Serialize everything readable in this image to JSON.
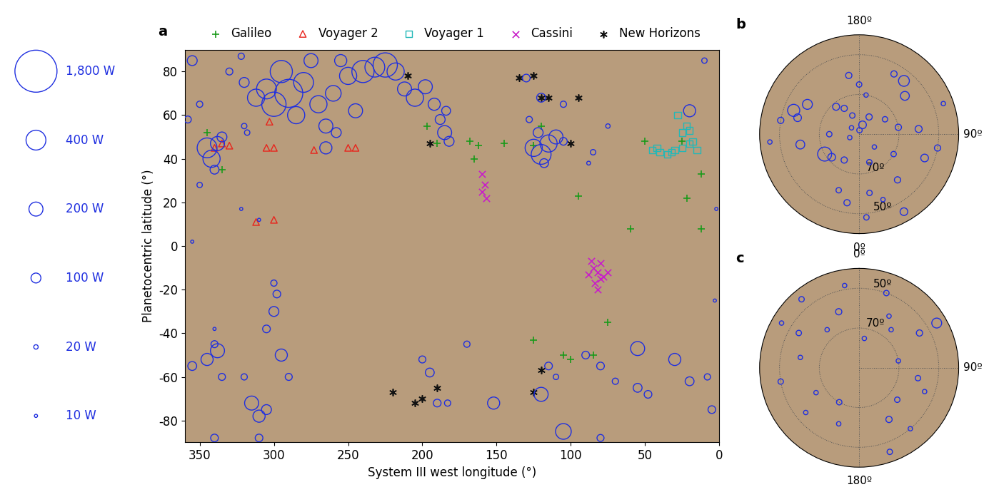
{
  "chart_data": [
    {
      "type": "scatter",
      "title": "a",
      "xlabel": "System III west longitude (°)",
      "ylabel": "Planetocentric latitude (°)",
      "xlim": [
        360,
        0
      ],
      "ylim": [
        -90,
        90
      ],
      "xticks": [
        350,
        300,
        250,
        200,
        150,
        100,
        50,
        0
      ],
      "yticks": [
        -80,
        -60,
        -40,
        -20,
        0,
        20,
        40,
        60,
        80
      ],
      "legend": "upper center",
      "size_legend": {
        "values": [
          1800,
          400,
          200,
          100,
          20,
          10
        ],
        "value_labels": [
          "1,800 W",
          "400 W",
          "200 W",
          "100 W",
          "20 W",
          "10 W"
        ]
      },
      "series": [
        {
          "name": "Galileo",
          "color": "#1a9a1a",
          "marker": "plus",
          "x": [
            345,
            335,
            197,
            190,
            168,
            162,
            165,
            145,
            125,
            120,
            95,
            60,
            50,
            25,
            22,
            12,
            12,
            100,
            105,
            75,
            85,
            125
          ],
          "y": [
            52,
            35,
            55,
            47,
            48,
            46,
            40,
            47,
            46,
            55,
            23,
            8,
            48,
            48,
            22,
            33,
            8,
            -52,
            -50,
            -35,
            -50,
            -43
          ]
        },
        {
          "name": "Voyager 2",
          "color": "#e8241c",
          "marker": "triangle",
          "x": [
            340,
            335,
            330,
            303,
            305,
            300,
            273,
            250,
            245,
            312,
            300
          ],
          "y": [
            45,
            47,
            46,
            57,
            45,
            45,
            44,
            45,
            45,
            11,
            12
          ]
        },
        {
          "name": "Voyager 1",
          "color": "#22b8b8",
          "marker": "square",
          "x": [
            45,
            40,
            35,
            30,
            25,
            20,
            15,
            20,
            22,
            25,
            28,
            18,
            42,
            32
          ],
          "y": [
            44,
            43,
            42,
            44,
            45,
            47,
            44,
            53,
            55,
            52,
            60,
            48,
            45,
            43
          ]
        },
        {
          "name": "Cassini",
          "color": "#c81ec8",
          "marker": "x",
          "x": [
            160,
            158,
            160,
            157,
            85,
            82,
            80,
            78,
            88,
            84,
            80,
            86,
            75,
            82
          ],
          "y": [
            33,
            28,
            25,
            22,
            -10,
            -12,
            -8,
            -14,
            -13,
            -17,
            -15,
            -7,
            -12,
            -20
          ]
        },
        {
          "name": "New Horizons",
          "color": "#111111",
          "marker": "asterisk",
          "x": [
            210,
            195,
            135,
            125,
            120,
            115,
            95,
            100,
            120,
            125,
            220,
            205,
            200,
            190
          ],
          "y": [
            78,
            47,
            77,
            78,
            68,
            68,
            68,
            47,
            -57,
            -67,
            -67,
            -72,
            -70,
            -65
          ]
        },
        {
          "color": "#1f2fe0",
          "marker": "circle",
          "x": [
            345,
            342,
            338,
            335,
            340,
            355,
            358,
            350,
            330,
            322,
            320,
            312,
            305,
            300,
            295,
            290,
            285,
            280,
            275,
            270,
            265,
            260,
            255,
            250,
            245,
            240,
            232,
            225,
            218,
            212,
            205,
            198,
            192,
            188,
            185,
            182,
            184,
            320,
            318,
            265,
            258,
            125,
            120,
            115,
            110,
            122,
            118,
            105,
            128,
            120,
            130,
            105,
            85,
            88,
            75,
            20,
            10,
            338,
            345,
            340,
            355,
            335,
            320,
            315,
            310,
            305,
            290,
            295,
            300,
            298,
            300,
            305,
            200,
            195,
            190,
            183,
            170,
            152,
            120,
            115,
            110,
            105,
            90,
            80,
            70,
            55,
            55,
            48,
            30,
            20,
            8,
            5,
            310,
            340,
            80,
            350,
            322,
            355,
            2,
            3,
            310,
            340
          ],
          "y": [
            45,
            40,
            47,
            50,
            35,
            85,
            58,
            65,
            80,
            87,
            75,
            68,
            72,
            65,
            80,
            70,
            60,
            75,
            85,
            65,
            55,
            70,
            85,
            78,
            62,
            80,
            82,
            83,
            80,
            72,
            68,
            73,
            65,
            58,
            52,
            48,
            62,
            55,
            52,
            45,
            52,
            45,
            42,
            47,
            50,
            52,
            38,
            48,
            58,
            68,
            77,
            65,
            43,
            38,
            55,
            62,
            85,
            -48,
            -52,
            -45,
            -55,
            -60,
            -60,
            -72,
            -78,
            -75,
            -60,
            -50,
            -30,
            -22,
            -17,
            -38,
            -52,
            -58,
            -72,
            -72,
            -45,
            -72,
            -68,
            -55,
            -60,
            -85,
            -50,
            -55,
            -62,
            -47,
            -65,
            -68,
            -52,
            -62,
            -60,
            -75,
            -88,
            -88,
            -88,
            28,
            17,
            2,
            17,
            -25,
            12,
            -38
          ],
          "sizes": [
            400,
            300,
            200,
            100,
            80,
            100,
            50,
            40,
            50,
            40,
            100,
            300,
            400,
            600,
            500,
            800,
            300,
            400,
            200,
            300,
            200,
            250,
            150,
            300,
            200,
            500,
            400,
            600,
            300,
            200,
            300,
            200,
            150,
            100,
            200,
            100,
            80,
            30,
            30,
            150,
            100,
            300,
            400,
            300,
            200,
            100,
            80,
            60,
            40,
            80,
            60,
            40,
            30,
            15,
            20,
            150,
            30,
            200,
            150,
            50,
            80,
            50,
            40,
            200,
            150,
            100,
            50,
            150,
            100,
            60,
            40,
            60,
            50,
            80,
            60,
            40,
            40,
            150,
            200,
            60,
            30,
            250,
            60,
            60,
            40,
            200,
            80,
            60,
            150,
            80,
            40,
            60,
            60,
            60,
            50,
            30,
            10,
            10,
            10,
            10,
            10,
            10
          ]
        }
      ]
    },
    {
      "type": "polar",
      "title": "b",
      "xticks": [
        {
          "value": 180,
          "label": "180º"
        },
        {
          "value": 90,
          "label": "90º"
        },
        {
          "value": 0,
          "label": "0º"
        }
      ],
      "ylim": [
        90,
        40
      ],
      "yticks": [
        {
          "value": 70,
          "label": "70º"
        },
        {
          "value": 50,
          "label": "50º"
        }
      ],
      "series": [
        {
          "color": "#1f2fe0",
          "marker": "circle",
          "x": [
            175,
            160,
            150,
            120,
            100,
            95,
            130,
            140,
            150,
            200,
            210,
            220,
            240,
            250,
            255,
            260,
            280,
            270,
            300,
            310,
            330,
            340,
            350,
            10,
            20,
            30,
            40,
            60,
            70,
            80,
            180,
            190,
            170,
            230,
            290,
            50,
            20,
            5,
            110,
            275
          ],
          "y": [
            88,
            85,
            80,
            75,
            70,
            60,
            60,
            55,
            55,
            80,
            75,
            72,
            60,
            55,
            58,
            50,
            60,
            75,
            70,
            72,
            75,
            60,
            55,
            60,
            55,
            45,
            60,
            70,
            55,
            50,
            65,
            60,
            70,
            85,
            85,
            80,
            75,
            48,
            45,
            45
          ],
          "sizes": [
            30,
            60,
            40,
            30,
            40,
            50,
            80,
            120,
            40,
            30,
            40,
            50,
            100,
            150,
            60,
            40,
            80,
            30,
            200,
            60,
            40,
            30,
            40,
            30,
            20,
            60,
            40,
            30,
            60,
            40,
            30,
            40,
            20,
            20,
            20,
            20,
            30,
            30,
            20,
            20
          ]
        }
      ]
    },
    {
      "type": "polar",
      "title": "c",
      "xticks": [
        {
          "value": 0,
          "label": "0º"
        },
        {
          "value": 90,
          "label": "90º"
        },
        {
          "value": 180,
          "label": "180º"
        }
      ],
      "ylim": [
        -90,
        -40
      ],
      "yticks": [
        {
          "value": -70,
          "label": "70º"
        },
        {
          "value": -50,
          "label": "50º"
        }
      ],
      "series": [
        {
          "color": "#1f2fe0",
          "marker": "circle",
          "x": [
            20,
            30,
            40,
            60,
            80,
            100,
            110,
            130,
            140,
            150,
            160,
            200,
            210,
            230,
            240,
            260,
            280,
            300,
            320,
            340,
            350,
            10,
            60,
            320,
            300
          ],
          "y": [
            -50,
            -60,
            -65,
            -55,
            -70,
            -60,
            -55,
            -65,
            -50,
            -60,
            -45,
            -60,
            -70,
            -55,
            -65,
            -50,
            -60,
            -55,
            -65,
            -60,
            -48,
            -75,
            -45,
            -45,
            -45
          ],
          "sizes": [
            30,
            20,
            20,
            40,
            20,
            30,
            20,
            30,
            20,
            40,
            30,
            20,
            30,
            20,
            20,
            30,
            20,
            30,
            20,
            40,
            20,
            20,
            100,
            30,
            20
          ]
        }
      ]
    }
  ]
}
